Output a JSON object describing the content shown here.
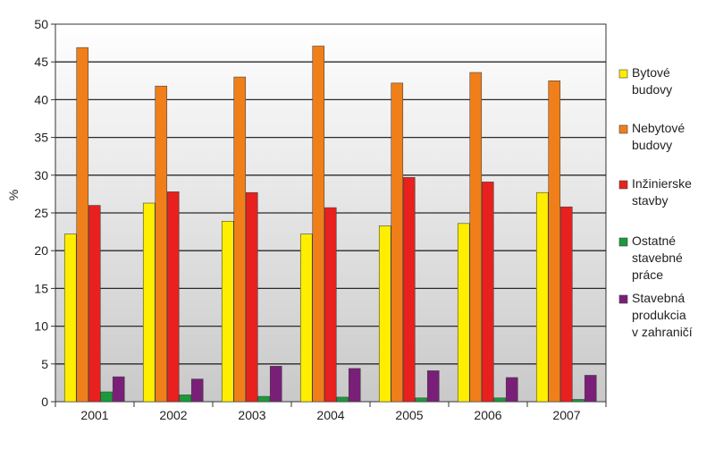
{
  "chart_data": {
    "type": "bar",
    "ylabel": "%",
    "xlabel": "",
    "ylim": [
      0,
      50
    ],
    "yticks": [
      "0",
      "5",
      "10",
      "15",
      "20",
      "25",
      "30",
      "35",
      "40",
      "45",
      "50"
    ],
    "grid": true,
    "legend_position": "right",
    "categories": [
      "2001",
      "2002",
      "2003",
      "2004",
      "2005",
      "2006",
      "2007"
    ],
    "series": [
      {
        "name": "Bytové budovy",
        "legend_lines": [
          "Bytové",
          "budovy"
        ],
        "color": "#ffee00",
        "values": [
          22.2,
          26.3,
          23.9,
          22.2,
          23.3,
          23.6,
          27.7
        ]
      },
      {
        "name": "Nebytové budovy",
        "legend_lines": [
          "Nebytové",
          "budovy"
        ],
        "color": "#f07f1a",
        "values": [
          46.9,
          41.8,
          43.0,
          47.1,
          42.2,
          43.6,
          42.5
        ]
      },
      {
        "name": "Inžinierske stavby",
        "legend_lines": [
          "Inžinierske",
          "stavby"
        ],
        "color": "#e8201e",
        "values": [
          26.0,
          27.8,
          27.7,
          25.7,
          29.7,
          29.1,
          25.8
        ]
      },
      {
        "name": "Ostatné stavebné práce",
        "legend_lines": [
          "Ostatné",
          "stavebné",
          "práce"
        ],
        "color": "#1a9a3a",
        "values": [
          1.3,
          0.9,
          0.7,
          0.6,
          0.5,
          0.5,
          0.3
        ]
      },
      {
        "name": "Stavebná produkcia v zahraničí",
        "legend_lines": [
          "Stavebná",
          "produkcia",
          "v zahraničí"
        ],
        "color": "#7a1f78",
        "values": [
          3.3,
          3.0,
          4.7,
          4.4,
          4.1,
          3.2,
          3.5
        ]
      }
    ]
  }
}
